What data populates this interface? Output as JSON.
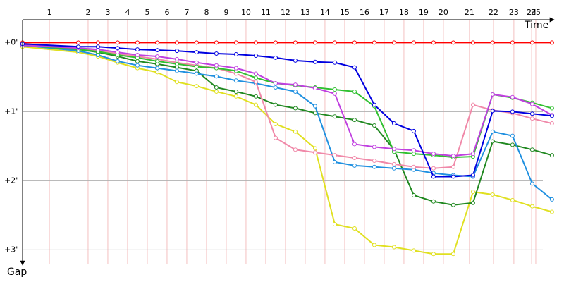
{
  "chart_data": {
    "type": "line",
    "x_label": "Time",
    "y_label": "Gap",
    "xlim": [
      0,
      27.43
    ],
    "ylim": [
      -0.33,
      3.21
    ],
    "y_reversed": true,
    "grid": true,
    "xticks": [
      {
        "value": 1.36,
        "label": "1"
      },
      {
        "value": 3.32,
        "label": "2"
      },
      {
        "value": 4.32,
        "label": "3"
      },
      {
        "value": 5.32,
        "label": "4"
      },
      {
        "value": 6.32,
        "label": "5"
      },
      {
        "value": 7.32,
        "label": "6"
      },
      {
        "value": 8.32,
        "label": "7"
      },
      {
        "value": 9.32,
        "label": "8"
      },
      {
        "value": 10.32,
        "label": "9"
      },
      {
        "value": 11.32,
        "label": "10"
      },
      {
        "value": 12.32,
        "label": "11"
      },
      {
        "value": 13.32,
        "label": "12"
      },
      {
        "value": 14.32,
        "label": "13"
      },
      {
        "value": 15.32,
        "label": "14"
      },
      {
        "value": 16.32,
        "label": "15"
      },
      {
        "value": 17.32,
        "label": "16"
      },
      {
        "value": 18.32,
        "label": "17"
      },
      {
        "value": 19.32,
        "label": "18"
      },
      {
        "value": 20.32,
        "label": "19"
      },
      {
        "value": 21.32,
        "label": "20"
      },
      {
        "value": 22.64,
        "label": "21"
      },
      {
        "value": 23.86,
        "label": "22"
      },
      {
        "value": 24.89,
        "label": "23"
      },
      {
        "value": 25.79,
        "label": "24"
      },
      {
        "value": 26.0,
        "label": "25"
      }
    ],
    "yticks": [
      {
        "value": 0,
        "label": "+0'"
      },
      {
        "value": 1,
        "label": "+1'"
      },
      {
        "value": 2,
        "label": "+2'"
      },
      {
        "value": 3,
        "label": "+3'"
      }
    ],
    "x": [
      0,
      2.82,
      3.82,
      4.82,
      5.82,
      6.82,
      7.82,
      8.82,
      9.82,
      10.82,
      11.82,
      12.82,
      13.82,
      14.82,
      15.82,
      16.82,
      17.82,
      18.82,
      19.82,
      20.82,
      21.82,
      22.82,
      23.82,
      24.82,
      25.82,
      26.82
    ],
    "series": [
      {
        "color": "#ff0000",
        "values": [
          0,
          0,
          0,
          0,
          0,
          0,
          0,
          0,
          0,
          0,
          0,
          0,
          0,
          0,
          0,
          0,
          0,
          0,
          0,
          0,
          0,
          0,
          0,
          0,
          0,
          0
        ]
      },
      {
        "color": "#e0e020",
        "values": [
          0.06,
          0.14,
          0.2,
          0.29,
          0.37,
          0.43,
          0.57,
          0.63,
          0.71,
          0.78,
          0.9,
          1.18,
          1.29,
          1.53,
          2.63,
          2.69,
          2.93,
          2.96,
          3.01,
          3.06,
          3.06,
          2.16,
          2.2,
          2.28,
          2.37,
          2.45
        ]
      },
      {
        "color": "#208820",
        "values": [
          0.04,
          0.1,
          0.14,
          0.2,
          0.27,
          0.31,
          0.36,
          0.41,
          0.65,
          0.71,
          0.78,
          0.9,
          0.95,
          1.02,
          1.07,
          1.12,
          1.2,
          1.55,
          2.21,
          2.3,
          2.35,
          2.32,
          1.43,
          1.48,
          1.55,
          1.63
        ]
      },
      {
        "color": "#2090e0",
        "values": [
          0.04,
          0.12,
          0.18,
          0.27,
          0.33,
          0.37,
          0.41,
          0.45,
          0.49,
          0.55,
          0.59,
          0.65,
          0.71,
          0.92,
          1.73,
          1.78,
          1.8,
          1.82,
          1.84,
          1.89,
          1.92,
          1.94,
          1.29,
          1.35,
          2.04,
          2.27
        ]
      },
      {
        "color": "#f088a8",
        "values": [
          0.02,
          0.08,
          0.12,
          0.16,
          0.2,
          0.24,
          0.29,
          0.33,
          0.37,
          0.45,
          0.57,
          1.38,
          1.55,
          1.59,
          1.63,
          1.67,
          1.71,
          1.76,
          1.8,
          1.82,
          1.8,
          0.9,
          0.98,
          1.02,
          1.1,
          1.17
        ]
      },
      {
        "color": "#30c030",
        "values": [
          0.04,
          0.1,
          0.13,
          0.18,
          0.22,
          0.27,
          0.31,
          0.35,
          0.37,
          0.41,
          0.51,
          0.59,
          0.62,
          0.65,
          0.68,
          0.71,
          0.92,
          1.58,
          1.61,
          1.63,
          1.66,
          1.65,
          0.75,
          0.8,
          0.87,
          0.95
        ]
      },
      {
        "color": "#c040e0",
        "values": [
          0.04,
          0.08,
          0.1,
          0.14,
          0.18,
          0.2,
          0.24,
          0.29,
          0.33,
          0.37,
          0.45,
          0.59,
          0.61,
          0.66,
          0.74,
          1.47,
          1.51,
          1.54,
          1.56,
          1.61,
          1.64,
          1.61,
          0.75,
          0.79,
          0.89,
          1.05
        ]
      },
      {
        "color": "#0000e0",
        "values": [
          0.02,
          0.06,
          0.06,
          0.08,
          0.1,
          0.11,
          0.12,
          0.14,
          0.16,
          0.17,
          0.19,
          0.22,
          0.26,
          0.28,
          0.29,
          0.36,
          0.9,
          1.17,
          1.28,
          1.94,
          1.94,
          1.92,
          0.99,
          1.0,
          1.03,
          1.06
        ]
      }
    ]
  }
}
